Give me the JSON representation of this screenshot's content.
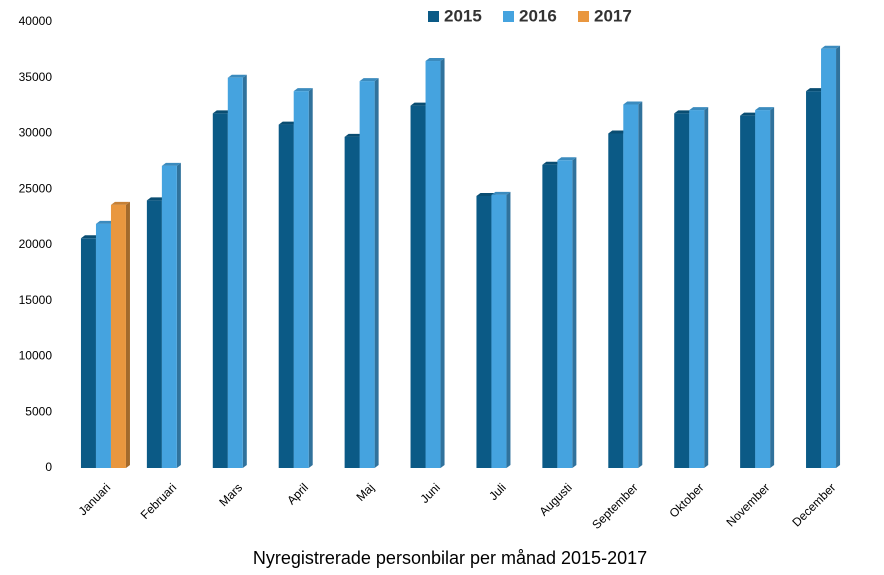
{
  "chart_data": {
    "type": "bar",
    "title": "Nyregistrerade personbilar per månad 2015-2017",
    "categories": [
      "Januari",
      "Februari",
      "Mars",
      "April",
      "Maj",
      "Juni",
      "Juli",
      "Augusti",
      "September",
      "Oktober",
      "November",
      "December"
    ],
    "series": [
      {
        "name": "2015",
        "color": "#0b5a86",
        "values": [
          20600,
          24000,
          31800,
          30800,
          29700,
          32500,
          24400,
          27200,
          30000,
          31800,
          31600,
          33800
        ]
      },
      {
        "name": "2016",
        "color": "#45a3df",
        "values": [
          21900,
          27100,
          35000,
          33800,
          34700,
          36500,
          24500,
          27600,
          32600,
          32100,
          32100,
          37600
        ]
      },
      {
        "name": "2017",
        "color": "#e9973f",
        "values": [
          23600,
          null,
          null,
          null,
          null,
          null,
          null,
          null,
          null,
          null,
          null,
          null
        ]
      }
    ],
    "ylim": [
      0,
      40000
    ],
    "yticks": [
      0,
      5000,
      10000,
      15000,
      20000,
      25000,
      30000,
      35000,
      40000
    ],
    "grid": false
  }
}
